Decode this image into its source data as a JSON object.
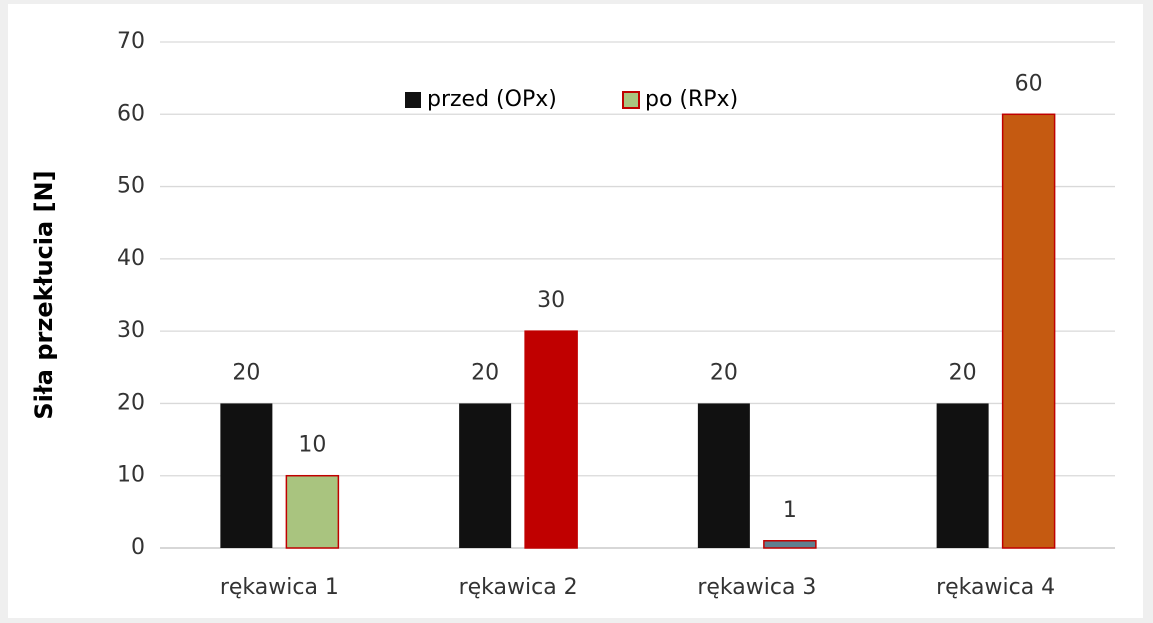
{
  "chart_data": {
    "type": "bar",
    "ylabel": "Siła przekłucia [N]",
    "categories": [
      "rękawica 1",
      "rękawica 2",
      "rękawica 3",
      "rękawica 4"
    ],
    "series": [
      {
        "name": "przed (OPx)",
        "color": "#111111",
        "values": [
          20,
          20,
          20,
          20
        ]
      },
      {
        "name": "po (RPx)",
        "color": "#a9c47f",
        "edgecolor": "#c00000",
        "colors": [
          "#a9c47f",
          "#c00000",
          "#5f7f8f",
          "#c55a11"
        ],
        "values": [
          10,
          30,
          1,
          60
        ]
      }
    ],
    "ylim": [
      0,
      70
    ],
    "yticks": [
      0,
      10,
      20,
      30,
      40,
      50,
      60,
      70
    ],
    "grid": true,
    "legend": "upper center",
    "data_labels": true
  }
}
